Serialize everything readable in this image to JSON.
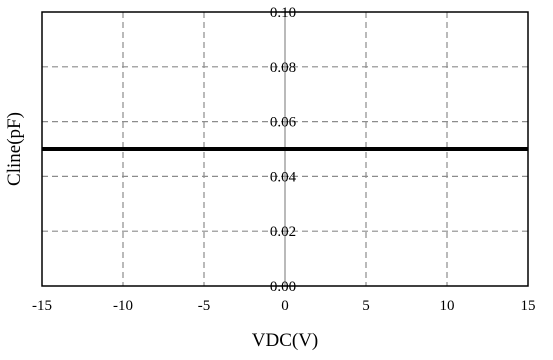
{
  "chart_data": {
    "type": "line",
    "title": "",
    "xlabel": "VDC(V)",
    "ylabel": "Cline(pF)",
    "xlim": [
      -15,
      15
    ],
    "ylim": [
      0,
      0.1
    ],
    "xticks": [
      "-15",
      "-10",
      "-5",
      "0",
      "5",
      "10",
      "15"
    ],
    "yticks": [
      "0.00",
      "0.02",
      "0.04",
      "0.06",
      "0.08",
      "0.10"
    ],
    "grid": true,
    "series": [
      {
        "x": [
          -15,
          15
        ],
        "y": [
          0.05,
          0.05
        ],
        "color": "#000000"
      }
    ]
  }
}
